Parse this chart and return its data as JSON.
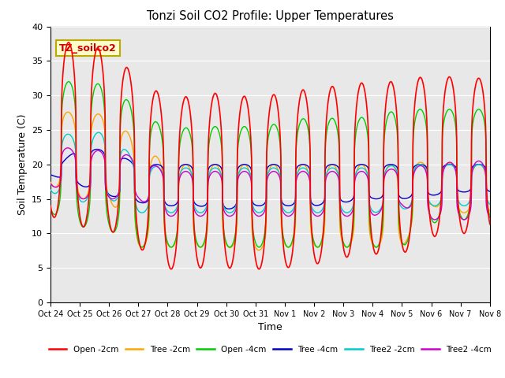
{
  "title": "Tonzi Soil CO2 Profile: Upper Temperatures",
  "xlabel": "Time",
  "ylabel": "Soil Temperature (C)",
  "ylim": [
    0,
    40
  ],
  "background_color": "#e8e8e8",
  "xtick_labels": [
    "Oct 24",
    "Oct 25",
    "Oct 26",
    "Oct 27",
    "Oct 28",
    "Oct 29",
    "Oct 30",
    "Oct 31",
    "Nov 1",
    "Nov 2",
    "Nov 3",
    "Nov 4",
    "Nov 5",
    "Nov 6",
    "Nov 7",
    "Nov 8"
  ],
  "annotation": "TZ_soilco2",
  "series": {
    "Open -2cm": {
      "color": "#ff0000",
      "peaks": [
        38.0,
        37.5,
        36.5,
        32.5,
        29.5,
        30.0,
        30.5,
        29.5,
        30.5,
        31.0,
        31.5,
        32.0,
        32.0,
        33.0,
        32.5
      ],
      "troughs": [
        12.5,
        11.0,
        10.5,
        8.0,
        4.8,
        5.0,
        5.0,
        4.8,
        5.0,
        5.5,
        6.5,
        7.0,
        7.0,
        9.5,
        10.0
      ]
    },
    "Tree -2cm": {
      "color": "#ffa500",
      "peaks": [
        28.5,
        27.0,
        27.5,
        23.0,
        20.0,
        20.0,
        20.0,
        20.0,
        20.0,
        20.0,
        20.0,
        20.0,
        20.0,
        20.5,
        20.0
      ],
      "troughs": [
        17.0,
        15.0,
        15.0,
        8.0,
        8.0,
        8.0,
        8.0,
        7.5,
        8.0,
        8.0,
        8.0,
        8.0,
        8.0,
        14.0,
        13.0
      ]
    },
    "Open -4cm": {
      "color": "#00cc00",
      "peaks": [
        32.0,
        32.0,
        31.5,
        28.0,
        25.0,
        25.5,
        25.5,
        25.5,
        26.0,
        27.0,
        26.5,
        27.0,
        28.0,
        28.0,
        28.0
      ],
      "troughs": [
        13.0,
        11.0,
        10.5,
        8.0,
        8.0,
        8.0,
        8.0,
        8.0,
        8.0,
        8.0,
        8.0,
        8.0,
        8.0,
        11.5,
        12.0
      ]
    },
    "Tree -4cm": {
      "color": "#0000cc",
      "peaks": [
        19.0,
        22.5,
        22.0,
        20.0,
        20.0,
        20.0,
        20.0,
        20.0,
        20.0,
        20.0,
        20.0,
        20.0,
        20.0,
        20.0,
        20.0
      ],
      "troughs": [
        18.5,
        17.0,
        15.5,
        14.5,
        14.0,
        14.0,
        13.5,
        14.0,
        14.0,
        14.0,
        14.5,
        15.0,
        15.0,
        15.5,
        16.0
      ]
    },
    "Tree2 -2cm": {
      "color": "#00cccc",
      "peaks": [
        25.0,
        24.0,
        25.0,
        20.0,
        19.5,
        19.5,
        19.5,
        19.5,
        19.5,
        19.5,
        19.5,
        19.5,
        20.0,
        20.0,
        20.0
      ],
      "troughs": [
        16.0,
        14.5,
        15.0,
        13.0,
        13.0,
        13.0,
        13.0,
        13.0,
        13.0,
        13.0,
        13.0,
        13.0,
        13.5,
        14.0,
        14.0
      ]
    },
    "Tree2 -4cm": {
      "color": "#cc00cc",
      "peaks": [
        23.0,
        22.0,
        22.0,
        21.0,
        19.0,
        19.0,
        19.0,
        19.0,
        19.0,
        19.0,
        19.0,
        19.0,
        19.5,
        20.0,
        20.5
      ],
      "troughs": [
        17.0,
        15.0,
        15.0,
        15.0,
        12.5,
        12.5,
        12.5,
        12.5,
        12.5,
        12.5,
        12.5,
        12.5,
        14.0,
        12.0,
        12.0
      ]
    }
  },
  "legend_order": [
    "Open -2cm",
    "Tree -2cm",
    "Open -4cm",
    "Tree -4cm",
    "Tree2 -2cm",
    "Tree2 -4cm"
  ]
}
